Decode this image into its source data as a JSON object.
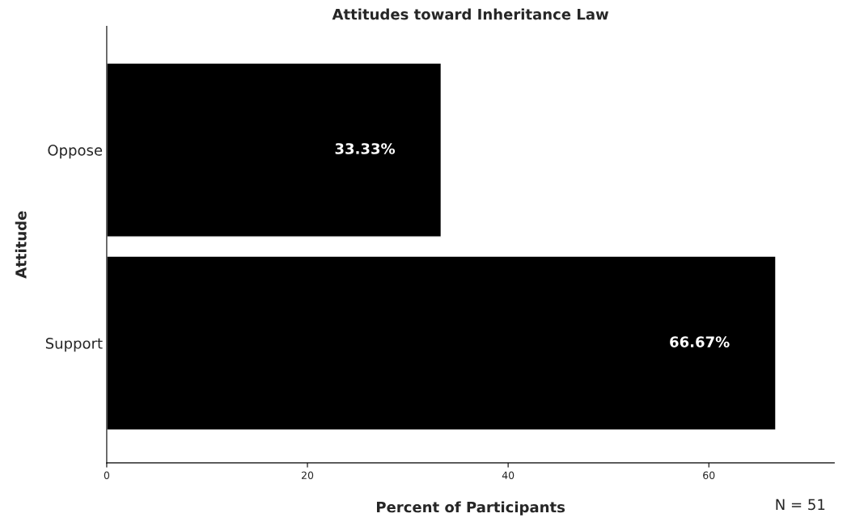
{
  "chart_data": {
    "type": "bar",
    "orientation": "horizontal",
    "title": "Attitudes toward Inheritance Law",
    "xlabel": "Percent of Participants",
    "ylabel": "Attitude",
    "categories": [
      "Oppose",
      "Support"
    ],
    "values": [
      33.33,
      66.67
    ],
    "value_labels": [
      "33.33%",
      "66.67%"
    ],
    "color": "#000000",
    "xlim": [
      0,
      72.5
    ],
    "xticks": [
      0,
      20,
      40,
      60
    ],
    "grid": false,
    "legend": false,
    "annotations": [
      "N = 51"
    ]
  }
}
